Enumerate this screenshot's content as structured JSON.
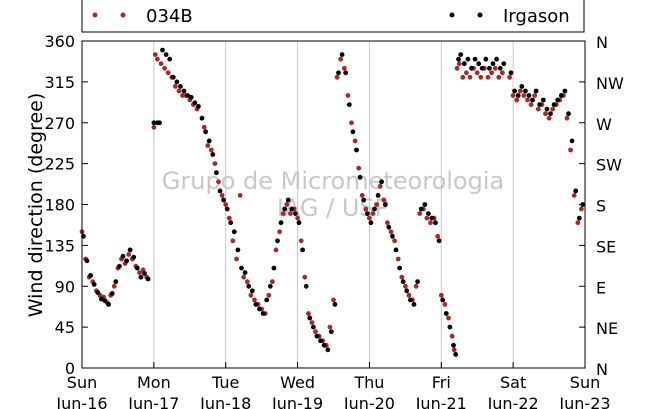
{
  "chart_data": {
    "type": "scatter",
    "title": "",
    "ylabel": "Wind direction (degree)",
    "xlabel": "",
    "ylim": [
      0,
      360
    ],
    "xlim": [
      0,
      7
    ],
    "grid": "vertical lines at day boundaries",
    "legend": "top, outside plot",
    "yticks": [
      0,
      45,
      90,
      135,
      180,
      225,
      270,
      315,
      360
    ],
    "x_ticks": [
      {
        "x": 0,
        "day": "Sun",
        "date": "Jun-16"
      },
      {
        "x": 1,
        "day": "Mon",
        "date": "Jun-17"
      },
      {
        "x": 2,
        "day": "Tue",
        "date": "Jun-18"
      },
      {
        "x": 3,
        "day": "Wed",
        "date": "Jun-19"
      },
      {
        "x": 4,
        "day": "Thu",
        "date": "Jun-20"
      },
      {
        "x": 5,
        "day": "Fri",
        "date": "Jun-21"
      },
      {
        "x": 6,
        "day": "Sat",
        "date": "Jun-22"
      },
      {
        "x": 7,
        "day": "Sun",
        "date": "Jun-23"
      }
    ],
    "compass_ticks": [
      {
        "deg": 0,
        "label": "N"
      },
      {
        "deg": 45,
        "label": "NE"
      },
      {
        "deg": 90,
        "label": "E"
      },
      {
        "deg": 135,
        "label": "SE"
      },
      {
        "deg": 180,
        "label": "S"
      },
      {
        "deg": 225,
        "label": "SW"
      },
      {
        "deg": 270,
        "label": "W"
      },
      {
        "deg": 315,
        "label": "NW"
      },
      {
        "deg": 360,
        "label": "N"
      }
    ],
    "watermark": [
      "Grupo de Micrometeorologia",
      "IAG / USP"
    ],
    "series": [
      {
        "name": "034B",
        "color": "#a52a2a",
        "points": [
          [
            0.0,
            150
          ],
          [
            0.05,
            120
          ],
          [
            0.1,
            100
          ],
          [
            0.15,
            95
          ],
          [
            0.2,
            85
          ],
          [
            0.25,
            80
          ],
          [
            0.3,
            78
          ],
          [
            0.35,
            72
          ],
          [
            0.4,
            80
          ],
          [
            0.45,
            90
          ],
          [
            0.5,
            110
          ],
          [
            0.55,
            120
          ],
          [
            0.6,
            115
          ],
          [
            0.65,
            125
          ],
          [
            0.7,
            120
          ],
          [
            0.75,
            112
          ],
          [
            0.8,
            105
          ],
          [
            0.85,
            108
          ],
          [
            0.9,
            100
          ],
          [
            1.0,
            265
          ],
          [
            1.02,
            345
          ],
          [
            1.05,
            340
          ],
          [
            1.1,
            335
          ],
          [
            1.15,
            330
          ],
          [
            1.2,
            325
          ],
          [
            1.25,
            320
          ],
          [
            1.3,
            310
          ],
          [
            1.35,
            305
          ],
          [
            1.4,
            300
          ],
          [
            1.45,
            300
          ],
          [
            1.5,
            295
          ],
          [
            1.55,
            290
          ],
          [
            1.6,
            285
          ],
          [
            1.7,
            265
          ],
          [
            1.75,
            245
          ],
          [
            1.8,
            240
          ],
          [
            1.85,
            225
          ],
          [
            1.9,
            205
          ],
          [
            1.95,
            190
          ],
          [
            2.0,
            180
          ],
          [
            2.05,
            165
          ],
          [
            2.1,
            140
          ],
          [
            2.15,
            120
          ],
          [
            2.2,
            190
          ],
          [
            2.25,
            100
          ],
          [
            2.3,
            95
          ],
          [
            2.35,
            80
          ],
          [
            2.4,
            75
          ],
          [
            2.45,
            70
          ],
          [
            2.5,
            65
          ],
          [
            2.55,
            60
          ],
          [
            2.6,
            80
          ],
          [
            2.65,
            95
          ],
          [
            2.7,
            130
          ],
          [
            2.75,
            150
          ],
          [
            2.8,
            170
          ],
          [
            2.85,
            180
          ],
          [
            2.9,
            170
          ],
          [
            2.95,
            175
          ],
          [
            3.0,
            165
          ],
          [
            3.05,
            140
          ],
          [
            3.1,
            100
          ],
          [
            3.15,
            60
          ],
          [
            3.2,
            50
          ],
          [
            3.25,
            40
          ],
          [
            3.3,
            35
          ],
          [
            3.35,
            30
          ],
          [
            3.4,
            25
          ],
          [
            3.45,
            45
          ],
          [
            3.5,
            75
          ],
          [
            3.55,
            320
          ],
          [
            3.6,
            340
          ],
          [
            3.65,
            330
          ],
          [
            3.7,
            300
          ],
          [
            3.75,
            270
          ],
          [
            3.8,
            250
          ],
          [
            3.85,
            220
          ],
          [
            3.9,
            190
          ],
          [
            3.95,
            175
          ],
          [
            4.0,
            165
          ],
          [
            4.05,
            170
          ],
          [
            4.1,
            180
          ],
          [
            4.15,
            200
          ],
          [
            4.2,
            185
          ],
          [
            4.25,
            160
          ],
          [
            4.3,
            150
          ],
          [
            4.35,
            140
          ],
          [
            4.4,
            120
          ],
          [
            4.45,
            100
          ],
          [
            4.5,
            90
          ],
          [
            4.55,
            80
          ],
          [
            4.6,
            75
          ],
          [
            4.65,
            90
          ],
          [
            4.7,
            170
          ],
          [
            4.75,
            175
          ],
          [
            4.8,
            165
          ],
          [
            4.85,
            160
          ],
          [
            4.9,
            165
          ],
          [
            4.95,
            145
          ],
          [
            5.0,
            80
          ],
          [
            5.05,
            70
          ],
          [
            5.1,
            55
          ],
          [
            5.15,
            35
          ],
          [
            5.18,
            20
          ],
          [
            5.22,
            330
          ],
          [
            5.25,
            335
          ],
          [
            5.3,
            320
          ],
          [
            5.35,
            325
          ],
          [
            5.4,
            320
          ],
          [
            5.45,
            330
          ],
          [
            5.5,
            325
          ],
          [
            5.55,
            320
          ],
          [
            5.6,
            330
          ],
          [
            5.65,
            320
          ],
          [
            5.7,
            325
          ],
          [
            5.75,
            330
          ],
          [
            5.8,
            320
          ],
          [
            5.85,
            325
          ],
          [
            5.95,
            320
          ],
          [
            6.0,
            300
          ],
          [
            6.05,
            295
          ],
          [
            6.1,
            305
          ],
          [
            6.15,
            300
          ],
          [
            6.2,
            295
          ],
          [
            6.25,
            290
          ],
          [
            6.3,
            300
          ],
          [
            6.35,
            285
          ],
          [
            6.4,
            290
          ],
          [
            6.45,
            280
          ],
          [
            6.5,
            275
          ],
          [
            6.55,
            285
          ],
          [
            6.6,
            290
          ],
          [
            6.65,
            295
          ],
          [
            6.7,
            300
          ],
          [
            6.75,
            275
          ],
          [
            6.8,
            240
          ],
          [
            6.85,
            190
          ],
          [
            6.9,
            160
          ],
          [
            6.95,
            175
          ]
        ]
      },
      {
        "name": "Irgason",
        "color": "#000000",
        "points": [
          [
            0.02,
            145
          ],
          [
            0.07,
            118
          ],
          [
            0.12,
            102
          ],
          [
            0.17,
            92
          ],
          [
            0.22,
            83
          ],
          [
            0.27,
            76
          ],
          [
            0.32,
            74
          ],
          [
            0.37,
            70
          ],
          [
            0.42,
            82
          ],
          [
            0.47,
            95
          ],
          [
            0.52,
            112
          ],
          [
            0.57,
            123
          ],
          [
            0.62,
            118
          ],
          [
            0.67,
            130
          ],
          [
            0.72,
            122
          ],
          [
            0.77,
            110
          ],
          [
            0.82,
            100
          ],
          [
            0.87,
            104
          ],
          [
            0.92,
            98
          ],
          [
            1.0,
            270
          ],
          [
            1.05,
            270
          ],
          [
            1.08,
            270
          ],
          [
            1.12,
            350
          ],
          [
            1.17,
            345
          ],
          [
            1.22,
            340
          ],
          [
            1.27,
            320
          ],
          [
            1.32,
            315
          ],
          [
            1.37,
            310
          ],
          [
            1.42,
            305
          ],
          [
            1.47,
            300
          ],
          [
            1.52,
            298
          ],
          [
            1.57,
            292
          ],
          [
            1.62,
            288
          ],
          [
            1.67,
            275
          ],
          [
            1.72,
            260
          ],
          [
            1.77,
            250
          ],
          [
            1.82,
            235
          ],
          [
            1.87,
            215
          ],
          [
            1.92,
            195
          ],
          [
            1.97,
            185
          ],
          [
            2.02,
            175
          ],
          [
            2.07,
            160
          ],
          [
            2.12,
            150
          ],
          [
            2.17,
            130
          ],
          [
            2.22,
            110
          ],
          [
            2.27,
            105
          ],
          [
            2.32,
            90
          ],
          [
            2.37,
            85
          ],
          [
            2.42,
            70
          ],
          [
            2.47,
            65
          ],
          [
            2.52,
            60
          ],
          [
            2.57,
            75
          ],
          [
            2.62,
            90
          ],
          [
            2.67,
            110
          ],
          [
            2.72,
            140
          ],
          [
            2.77,
            160
          ],
          [
            2.82,
            175
          ],
          [
            2.87,
            185
          ],
          [
            2.92,
            175
          ],
          [
            2.97,
            170
          ],
          [
            3.02,
            160
          ],
          [
            3.07,
            130
          ],
          [
            3.12,
            90
          ],
          [
            3.17,
            55
          ],
          [
            3.22,
            45
          ],
          [
            3.27,
            35
          ],
          [
            3.32,
            30
          ],
          [
            3.37,
            25
          ],
          [
            3.42,
            20
          ],
          [
            3.47,
            40
          ],
          [
            3.52,
            70
          ],
          [
            3.57,
            325
          ],
          [
            3.62,
            345
          ],
          [
            3.67,
            325
          ],
          [
            3.72,
            290
          ],
          [
            3.77,
            260
          ],
          [
            3.82,
            240
          ],
          [
            3.87,
            210
          ],
          [
            3.92,
            185
          ],
          [
            3.97,
            170
          ],
          [
            4.02,
            160
          ],
          [
            4.07,
            175
          ],
          [
            4.12,
            190
          ],
          [
            4.17,
            205
          ],
          [
            4.22,
            180
          ],
          [
            4.27,
            155
          ],
          [
            4.32,
            145
          ],
          [
            4.37,
            130
          ],
          [
            4.42,
            110
          ],
          [
            4.47,
            95
          ],
          [
            4.52,
            85
          ],
          [
            4.57,
            75
          ],
          [
            4.62,
            70
          ],
          [
            4.67,
            95
          ],
          [
            4.72,
            175
          ],
          [
            4.77,
            180
          ],
          [
            4.82,
            170
          ],
          [
            4.87,
            165
          ],
          [
            4.92,
            160
          ],
          [
            4.97,
            140
          ],
          [
            5.02,
            75
          ],
          [
            5.07,
            60
          ],
          [
            5.12,
            45
          ],
          [
            5.17,
            25
          ],
          [
            5.2,
            15
          ],
          [
            5.24,
            340
          ],
          [
            5.27,
            345
          ],
          [
            5.32,
            335
          ],
          [
            5.37,
            340
          ],
          [
            5.42,
            330
          ],
          [
            5.47,
            340
          ],
          [
            5.52,
            335
          ],
          [
            5.57,
            330
          ],
          [
            5.62,
            340
          ],
          [
            5.67,
            330
          ],
          [
            5.72,
            335
          ],
          [
            5.77,
            340
          ],
          [
            5.82,
            330
          ],
          [
            5.87,
            335
          ],
          [
            5.97,
            325
          ],
          [
            6.02,
            305
          ],
          [
            6.07,
            300
          ],
          [
            6.12,
            310
          ],
          [
            6.17,
            305
          ],
          [
            6.22,
            300
          ],
          [
            6.27,
            295
          ],
          [
            6.32,
            305
          ],
          [
            6.37,
            290
          ],
          [
            6.42,
            295
          ],
          [
            6.47,
            285
          ],
          [
            6.52,
            280
          ],
          [
            6.57,
            290
          ],
          [
            6.62,
            295
          ],
          [
            6.67,
            300
          ],
          [
            6.72,
            305
          ],
          [
            6.77,
            280
          ],
          [
            6.82,
            250
          ],
          [
            6.87,
            195
          ],
          [
            6.92,
            165
          ],
          [
            6.97,
            180
          ]
        ]
      }
    ]
  }
}
